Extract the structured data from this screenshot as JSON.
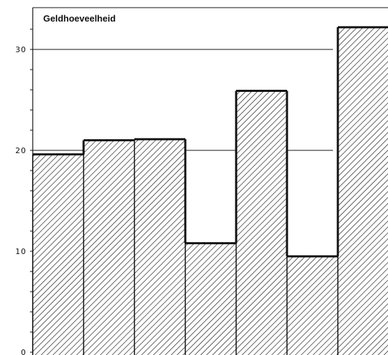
{
  "chart_data": {
    "type": "bar",
    "title": "Geldhoeveelheid",
    "xlabel": "",
    "ylabel": "",
    "categories": [
      "",
      "",
      "",
      "",
      "",
      "",
      ""
    ],
    "values": [
      19.6,
      21.0,
      21.1,
      10.8,
      25.9,
      9.5,
      32.2
    ],
    "ylim": [
      0,
      34
    ],
    "yticks": [
      "0",
      "10",
      "20",
      "30"
    ],
    "reference_lines": [
      20,
      30
    ],
    "fill_pattern": "diagonal-hatch",
    "grid": false
  }
}
